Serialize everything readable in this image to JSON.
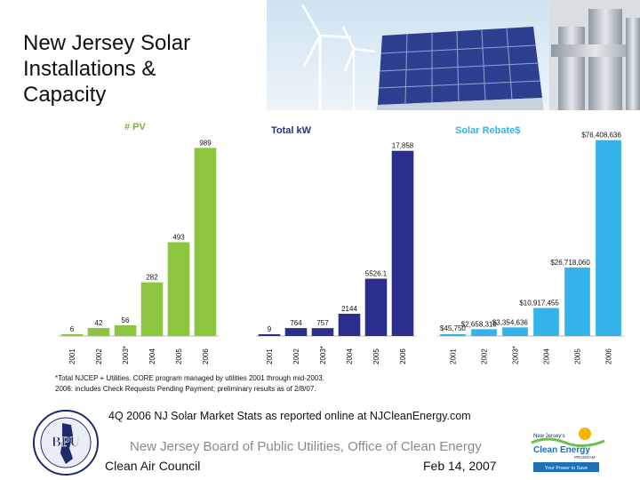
{
  "slide": {
    "title": "New Jersey Solar\nInstallations &\nCapacity",
    "caption": "4Q 2006 NJ Solar Market Stats as reported online at NJCleanEnergy.com",
    "board": "New Jersey Board of Public Utilities, Office of Clean Energy",
    "presenter": "Clean Air Council",
    "date": "Feb 14, 2007"
  },
  "footnotes": {
    "line1": "*Total NJCEP + Utilities. CORE program managed by utilities 2001 through mid-2003.",
    "line2": "2006: includes Check Requests Pending Payment; preliminary results as of 2/8/07."
  },
  "logos": {
    "bpu_text": "BPU",
    "njce_line1": "New Jersey's",
    "njce_line2": "Clean Energy",
    "njce_line3": "PROGRAM",
    "njce_tagline": "Your Power to Save"
  },
  "colors": {
    "pv_green": "#8cc63f",
    "kw_navy": "#2b2e8c",
    "rebate_blue": "#33b3ea",
    "pv_title": "#7cb342",
    "kw_title": "#2b2e8c",
    "rebate_title": "#33b3ea"
  },
  "chart_data": [
    {
      "type": "bar",
      "title": "# PV",
      "categories": [
        "2001",
        "2002",
        "2003*",
        "2004",
        "2005",
        "2006"
      ],
      "values": [
        6,
        42,
        56,
        282,
        493,
        989
      ],
      "value_labels": [
        "6",
        "42",
        "56",
        "282",
        "493",
        "989"
      ],
      "ylim": [
        0,
        1000
      ]
    },
    {
      "type": "bar",
      "title": "Total kW",
      "categories": [
        "2001",
        "2002",
        "2003*",
        "2004",
        "2005",
        "2006"
      ],
      "values": [
        9,
        764,
        757,
        2144,
        5526.1,
        17858
      ],
      "value_labels": [
        "9",
        "764",
        "757",
        "2144",
        "5526.1",
        "17,858"
      ],
      "ylim": [
        0,
        18000
      ]
    },
    {
      "type": "bar",
      "title": "Solar Rebate$",
      "categories": [
        "2001",
        "2002",
        "2003*",
        "2004",
        "2005",
        "2006"
      ],
      "values": [
        45750,
        2658310,
        3354636,
        10917455,
        26718060,
        76408636
      ],
      "value_labels": [
        "$45,750",
        "$2,658,310",
        "$3,354,636",
        "$10,917,455",
        "$26,718,060",
        "$76,408,636"
      ],
      "ylim": [
        0,
        77000000
      ]
    }
  ]
}
